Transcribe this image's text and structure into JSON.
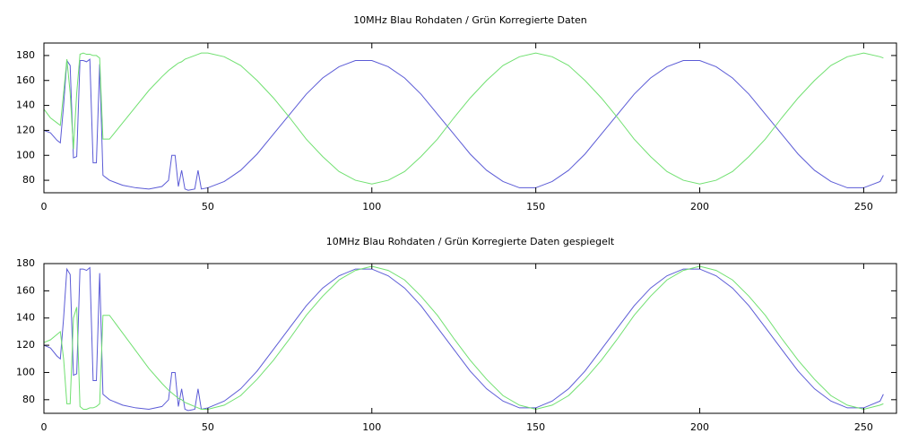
{
  "chart_data": [
    {
      "type": "line",
      "title": "10MHz Blau Rohdaten / Grün Korregierte Daten",
      "x": [
        0,
        2,
        4,
        5,
        6,
        7,
        8,
        9,
        10,
        11,
        12,
        13,
        14,
        15,
        16,
        17,
        18,
        19,
        20,
        24,
        28,
        32,
        36,
        38,
        39,
        40,
        41,
        42,
        43,
        44,
        46,
        47,
        48,
        50,
        55,
        60,
        65,
        70,
        75,
        80,
        85,
        90,
        95,
        100,
        105,
        110,
        115,
        120,
        125,
        130,
        135,
        140,
        145,
        150,
        155,
        160,
        165,
        170,
        175,
        180,
        185,
        190,
        195,
        200,
        205,
        210,
        215,
        220,
        225,
        230,
        235,
        240,
        245,
        250,
        255,
        256
      ],
      "series": [
        {
          "color": "#5b5bd6",
          "values": [
            120,
            118,
            112,
            110,
            140,
            176,
            172,
            98,
            99,
            176,
            176,
            175,
            177,
            94,
            94,
            173,
            84,
            82,
            80,
            76,
            74,
            73,
            75,
            80,
            100,
            100,
            75,
            88,
            73,
            72,
            73,
            88,
            73,
            74,
            79,
            88,
            101,
            117,
            133,
            149,
            162,
            171,
            176,
            176,
            171,
            162,
            149,
            133,
            117,
            101,
            88,
            79,
            74,
            74,
            79,
            88,
            101,
            117,
            133,
            149,
            162,
            171,
            176,
            176,
            171,
            162,
            149,
            133,
            117,
            101,
            88,
            79,
            74,
            74,
            79,
            84
          ]
        },
        {
          "color": "#70e070",
          "values": [
            137,
            130,
            126,
            124,
            150,
            177,
            150,
            105,
            150,
            181,
            182,
            181,
            181,
            180,
            180,
            178,
            113,
            113,
            113,
            126,
            139,
            152,
            163,
            168,
            170,
            172,
            174,
            175,
            177,
            178,
            180,
            181,
            182,
            182,
            179,
            172,
            160,
            146,
            130,
            113,
            99,
            87,
            80,
            77,
            80,
            87,
            99,
            113,
            130,
            146,
            160,
            172,
            179,
            182,
            179,
            172,
            160,
            146,
            130,
            113,
            99,
            87,
            80,
            77,
            80,
            87,
            99,
            113,
            130,
            146,
            160,
            172,
            179,
            182,
            179,
            178
          ]
        }
      ],
      "xlim": [
        0,
        260
      ],
      "ylim": [
        70,
        190
      ],
      "xticks": [
        0,
        50,
        100,
        150,
        200,
        250
      ],
      "yticks": [
        80,
        100,
        120,
        140,
        160,
        180
      ]
    },
    {
      "type": "line",
      "title": "10MHz Blau Rohdaten / Grün Korregierte Daten gespiegelt",
      "x": [
        0,
        2,
        4,
        5,
        6,
        7,
        8,
        9,
        10,
        11,
        12,
        13,
        14,
        15,
        16,
        17,
        18,
        19,
        20,
        24,
        28,
        32,
        36,
        38,
        39,
        40,
        41,
        42,
        43,
        44,
        46,
        47,
        48,
        50,
        55,
        60,
        65,
        70,
        75,
        80,
        85,
        90,
        95,
        100,
        105,
        110,
        115,
        120,
        125,
        130,
        135,
        140,
        145,
        150,
        155,
        160,
        165,
        170,
        175,
        180,
        185,
        190,
        195,
        200,
        205,
        210,
        215,
        220,
        225,
        230,
        235,
        240,
        245,
        250,
        255,
        256
      ],
      "series": [
        {
          "color": "#5b5bd6",
          "values": [
            120,
            118,
            112,
            110,
            140,
            176,
            172,
            98,
            99,
            176,
            176,
            175,
            177,
            94,
            94,
            173,
            84,
            82,
            80,
            76,
            74,
            73,
            75,
            80,
            100,
            100,
            75,
            88,
            73,
            72,
            73,
            88,
            73,
            74,
            79,
            88,
            101,
            117,
            133,
            149,
            162,
            171,
            176,
            176,
            171,
            162,
            149,
            133,
            117,
            101,
            88,
            79,
            74,
            74,
            79,
            88,
            101,
            117,
            133,
            149,
            162,
            171,
            176,
            176,
            171,
            162,
            149,
            133,
            117,
            101,
            88,
            79,
            74,
            74,
            79,
            84
          ]
        },
        {
          "color": "#70e070",
          "values": [
            122,
            124,
            128,
            130,
            110,
            77,
            77,
            140,
            148,
            75,
            73,
            73,
            74,
            74,
            75,
            77,
            142,
            142,
            142,
            129,
            116,
            103,
            92,
            87,
            85,
            83,
            81,
            80,
            78,
            77,
            75,
            74,
            73,
            73,
            76,
            83,
            95,
            109,
            125,
            142,
            156,
            168,
            175,
            178,
            175,
            168,
            156,
            142,
            125,
            109,
            95,
            83,
            76,
            73,
            76,
            83,
            95,
            109,
            125,
            142,
            156,
            168,
            175,
            178,
            175,
            168,
            156,
            142,
            125,
            109,
            95,
            83,
            76,
            73,
            76,
            77
          ]
        }
      ],
      "xlim": [
        0,
        260
      ],
      "ylim": [
        70,
        180
      ],
      "xticks": [
        0,
        50,
        100,
        150,
        200,
        250
      ],
      "yticks": [
        80,
        100,
        120,
        140,
        160,
        180
      ]
    }
  ]
}
